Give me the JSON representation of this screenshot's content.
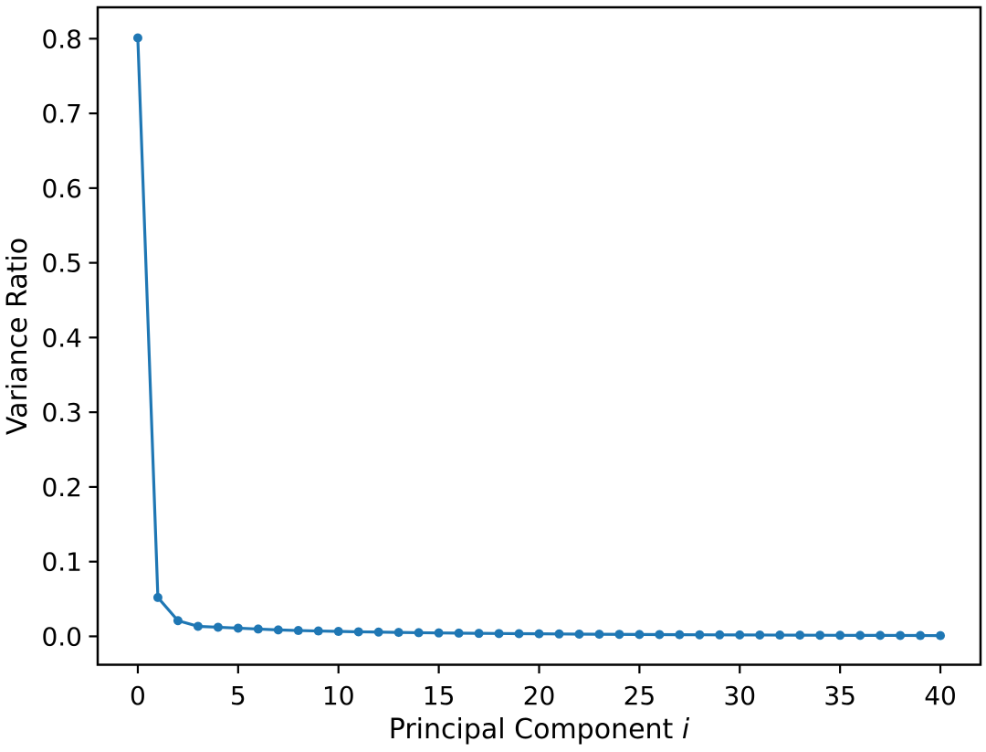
{
  "chart_data": {
    "type": "line",
    "xlabel": "Principal Component i",
    "xlabel_prefix": "Principal Component ",
    "xlabel_var": "i",
    "ylabel": "Variance Ratio",
    "x": [
      0,
      1,
      2,
      3,
      4,
      5,
      6,
      7,
      8,
      9,
      10,
      11,
      12,
      13,
      14,
      15,
      16,
      17,
      18,
      19,
      20,
      21,
      22,
      23,
      24,
      25,
      26,
      27,
      28,
      29,
      30,
      31,
      32,
      33,
      34,
      35,
      36,
      37,
      38,
      39,
      40
    ],
    "y": [
      0.801,
      0.052,
      0.021,
      0.0134,
      0.0122,
      0.011,
      0.0098,
      0.0086,
      0.0078,
      0.0072,
      0.0066,
      0.0061,
      0.0057,
      0.0053,
      0.0049,
      0.0046,
      0.0043,
      0.004,
      0.0038,
      0.0036,
      0.0034,
      0.0032,
      0.003,
      0.0028,
      0.0027,
      0.0025,
      0.0024,
      0.0022,
      0.0021,
      0.002,
      0.0019,
      0.0018,
      0.0017,
      0.0016,
      0.0015,
      0.0014,
      0.0013,
      0.0013,
      0.0012,
      0.0011,
      0.001
    ],
    "xlim": [
      -2,
      42
    ],
    "ylim": [
      -0.038,
      0.842
    ],
    "xticks": [
      0,
      5,
      10,
      15,
      20,
      25,
      30,
      35,
      40
    ],
    "xtick_labels": [
      "0",
      "5",
      "10",
      "15",
      "20",
      "25",
      "30",
      "35",
      "40"
    ],
    "yticks": [
      0,
      0.1,
      0.2,
      0.3,
      0.4,
      0.5,
      0.6,
      0.7,
      0.8
    ],
    "ytick_labels": [
      "0.0",
      "0.1",
      "0.2",
      "0.3",
      "0.4",
      "0.5",
      "0.6",
      "0.7",
      "0.8"
    ],
    "grid": false,
    "legend": null,
    "line_color": "#1f77b4",
    "marker": "circle",
    "axis_color": "#000000",
    "background": "#ffffff"
  }
}
